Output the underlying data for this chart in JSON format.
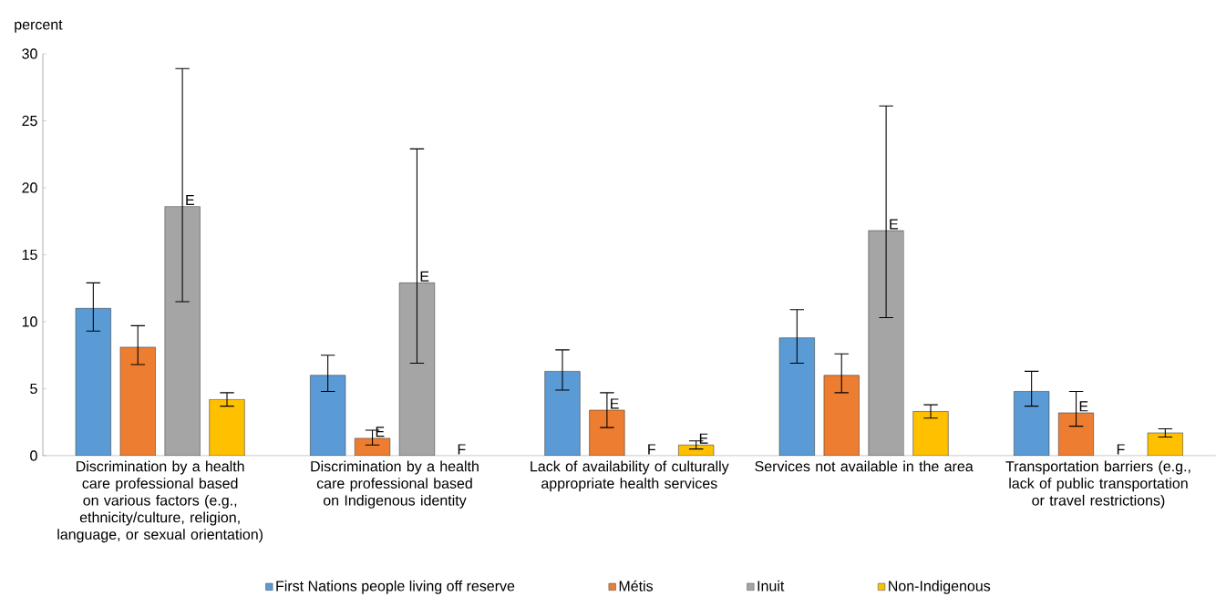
{
  "chart_data": {
    "type": "bar",
    "ylabel": "percent",
    "categories": [
      "Discrimination by a health care professional based on various factors (e.g., ethnicity/culture, religion, language, or sexual orientation)",
      "Discrimination by a health care professional based on Indigenous identity",
      "Lack of availability of culturally appropriate health services",
      "Services not available in the area",
      "Transportation barriers (e.g., lack of public transportation or travel restrictions)"
    ],
    "series": [
      {
        "name": "First Nations people living off reserve",
        "color": "#5b9bd5",
        "values": [
          11.0,
          6.0,
          6.3,
          8.8,
          4.8
        ],
        "errors": [
          [
            9.3,
            12.9
          ],
          [
            4.8,
            7.5
          ],
          [
            4.9,
            7.9
          ],
          [
            6.9,
            10.9
          ],
          [
            3.7,
            6.3
          ]
        ],
        "value_labels": [
          null,
          null,
          null,
          null,
          null
        ]
      },
      {
        "name": "Métis",
        "color": "#ed7d31",
        "values": [
          8.1,
          1.3,
          3.4,
          6.0,
          3.2
        ],
        "errors": [
          [
            6.8,
            9.7
          ],
          [
            0.8,
            1.9
          ],
          [
            2.1,
            4.7
          ],
          [
            4.7,
            7.6
          ],
          [
            2.2,
            4.8
          ]
        ],
        "value_labels": [
          null,
          "E",
          "E",
          null,
          "E"
        ]
      },
      {
        "name": "Inuit",
        "color": "#a5a5a5",
        "values": [
          18.6,
          12.9,
          null,
          16.8,
          null
        ],
        "errors": [
          [
            11.5,
            28.9
          ],
          [
            6.9,
            22.9
          ],
          null,
          [
            10.3,
            26.1
          ],
          null
        ],
        "value_labels": [
          "E",
          "E",
          "F",
          "E",
          "F"
        ]
      },
      {
        "name": "Non-Indigenous",
        "color": "#ffc000",
        "values": [
          4.2,
          null,
          0.8,
          3.3,
          1.7
        ],
        "errors": [
          [
            3.7,
            4.7
          ],
          null,
          [
            0.5,
            1.1
          ],
          [
            2.8,
            3.8
          ],
          [
            1.4,
            2.0
          ]
        ],
        "value_labels": [
          null,
          "F",
          "E",
          null,
          null
        ]
      }
    ],
    "ylim": [
      0,
      30
    ],
    "yticks": [
      0,
      5,
      10,
      15,
      20,
      25,
      30
    ],
    "grid": false,
    "legend": "bottom"
  }
}
